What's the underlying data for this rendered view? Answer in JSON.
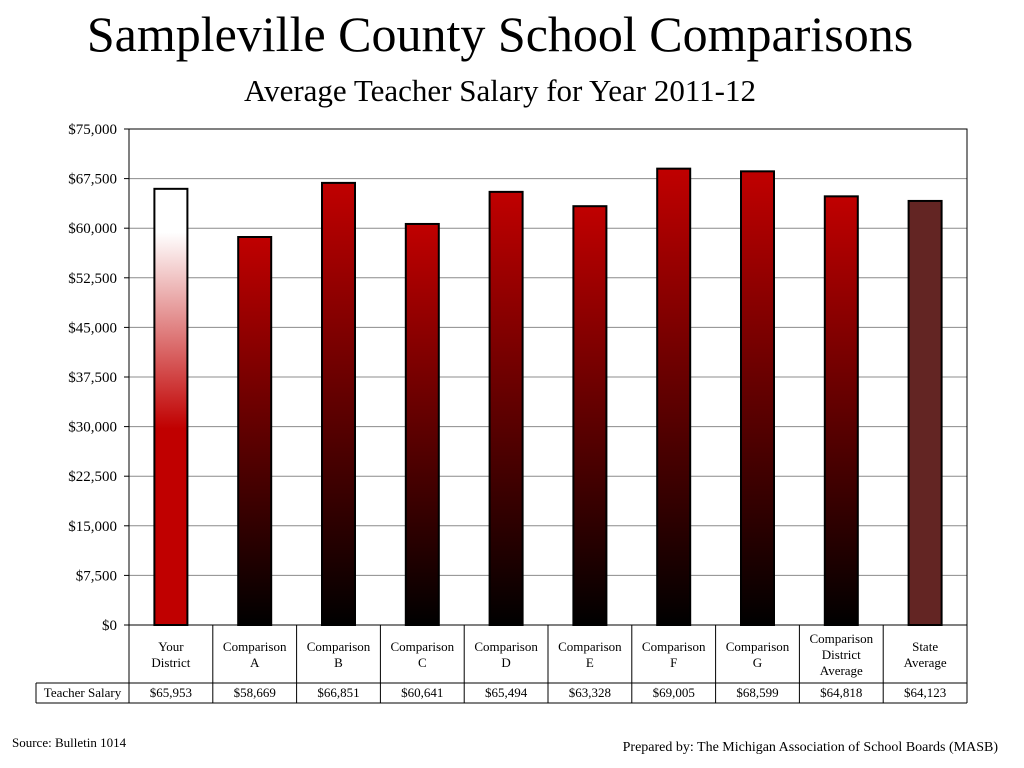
{
  "header": {
    "title": "Sampleville County School Comparisons",
    "subtitle": "Average Teacher Salary for Year 2011-12"
  },
  "chart_data": {
    "type": "bar",
    "categories": [
      [
        "Your",
        "District"
      ],
      [
        "Comparison",
        "A"
      ],
      [
        "Comparison",
        "B"
      ],
      [
        "Comparison",
        "C"
      ],
      [
        "Comparison",
        "D"
      ],
      [
        "Comparison",
        "E"
      ],
      [
        "Comparison",
        "F"
      ],
      [
        "Comparison",
        "G"
      ],
      [
        "Comparison",
        "District",
        "Average"
      ],
      [
        "State",
        "Average"
      ]
    ],
    "series": [
      {
        "name": "Teacher Salary",
        "values": [
          65953,
          58669,
          66851,
          60641,
          65494,
          63328,
          69005,
          68599,
          64818,
          64123
        ],
        "value_labels": [
          "$65,953",
          "$58,669",
          "$66,851",
          "$60,641",
          "$65,494",
          "$63,328",
          "$69,005",
          "$68,599",
          "$64,818",
          "$64,123"
        ]
      }
    ],
    "ylim": [
      0,
      75000
    ],
    "yticks": [
      0,
      7500,
      15000,
      22500,
      30000,
      37500,
      45000,
      52500,
      60000,
      67500,
      75000
    ],
    "ytick_labels": [
      "$0",
      "$7,500",
      "$15,000",
      "$22,500",
      "$30,000",
      "$37,500",
      "$45,000",
      "$52,500",
      "$60,000",
      "$67,500",
      "$75,000"
    ],
    "grid": true,
    "data_table": true,
    "bar_styles": [
      "highlight",
      "gradient",
      "gradient",
      "gradient",
      "gradient",
      "gradient",
      "gradient",
      "gradient",
      "gradient",
      "solid"
    ],
    "colors": {
      "red": "#c00000",
      "dark": "#000000",
      "state": "#632523",
      "grid": "#8c8c8c"
    }
  },
  "footer": {
    "source": "Source: Bulletin 1014",
    "prepared_by": "Prepared by: The Michigan Association of School Boards (MASB)"
  }
}
